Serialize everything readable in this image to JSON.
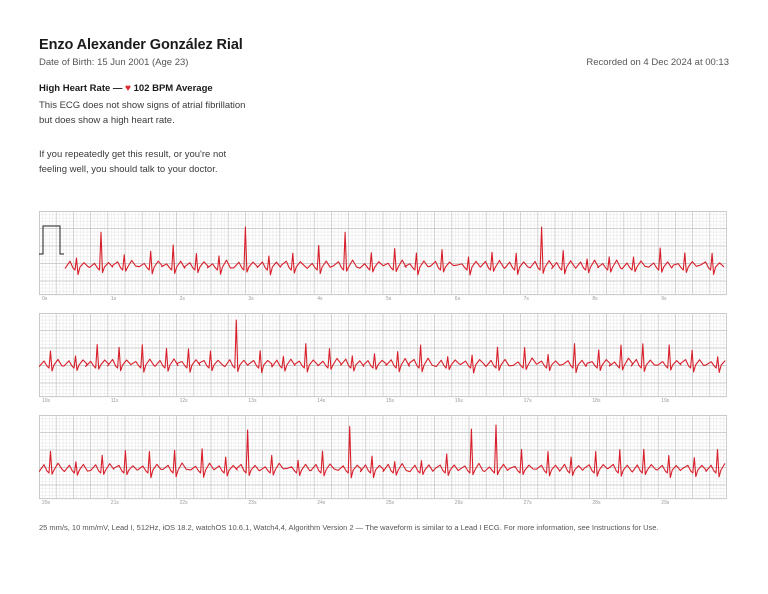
{
  "header": {
    "name": "Enzo Alexander González Rial",
    "dob": "Date of Birth: 15 Jun 2001 (Age 23)",
    "recorded": "Recorded on 4 Dec 2024 at 00:13"
  },
  "result": {
    "title": "High Heart Rate — ",
    "heart_icon": "heart-icon",
    "bpm": "102 BPM Average",
    "description": "This ECG does not show signs of atrial fibrillation but does show a high heart rate.",
    "advice": "If you repeatedly get this result, or you're not feeling well, you should talk to your doctor."
  },
  "colors": {
    "trace": "#d81f2b",
    "grid_major": "#c4c4c4",
    "grid_minor": "#e6e6e6",
    "heart": "#e0242c"
  },
  "strips": [
    {
      "ticks": [
        "0s",
        "1s",
        "2s",
        "3s",
        "4s",
        "5s",
        "6s",
        "7s",
        "8s",
        "9s"
      ]
    },
    {
      "ticks": [
        "10s",
        "11s",
        "12s",
        "13s",
        "14s",
        "15s",
        "16s",
        "17s",
        "18s",
        "19s"
      ]
    },
    {
      "ticks": [
        "20s",
        "21s",
        "22s",
        "23s",
        "24s",
        "25s",
        "26s",
        "27s",
        "28s",
        "29s"
      ]
    }
  ],
  "footer": "25 mm/s, 10 mm/mV, Lead I, 512Hz, iOS 18.2, watchOS 10.6.1, Watch4,4, Algorithm Version 2 — The waveform is similar to a Lead I ECG. For more information, see Instructions for Use."
}
